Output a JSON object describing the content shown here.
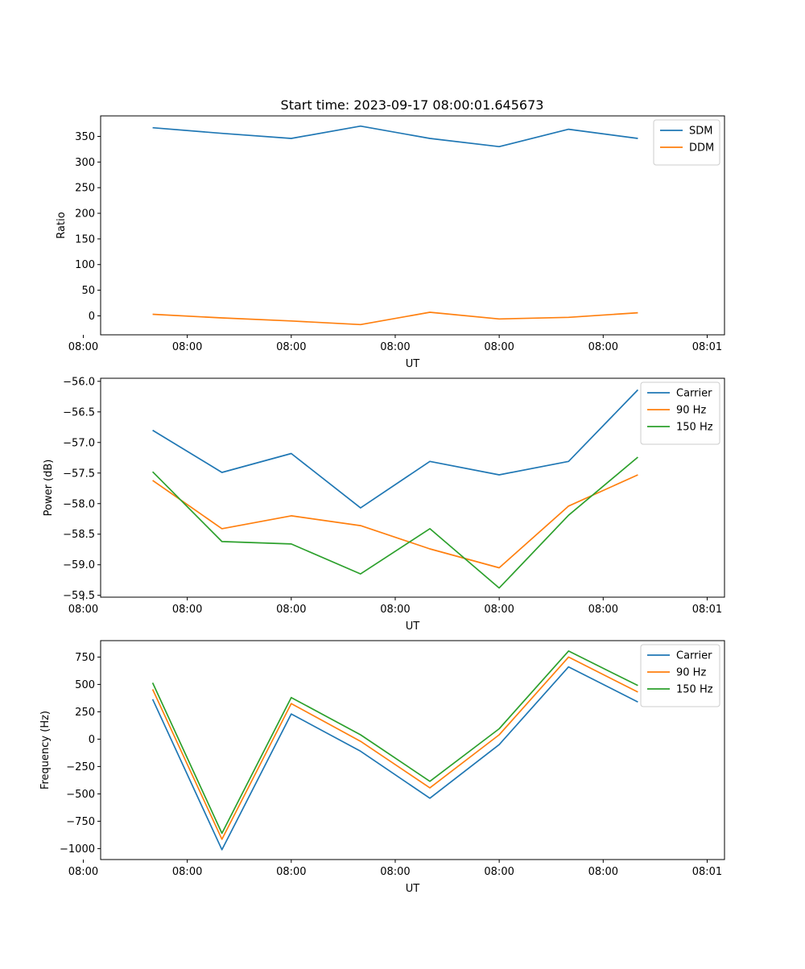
{
  "figure_title": "Start time: 2023-09-17 08:00:01.645673",
  "chart_data": [
    {
      "type": "line",
      "title": "Start time: 2023-09-17 08:00:01.645673",
      "xlabel": "UT",
      "ylabel": "Ratio",
      "x": [
        1,
        2,
        3,
        4,
        5,
        6,
        7,
        8
      ],
      "xlim": [
        0.25,
        9.25
      ],
      "x_ticks": [
        0,
        1.5,
        3,
        4.5,
        6,
        7.5,
        9
      ],
      "x_tick_labels": [
        "08:00",
        "08:00",
        "08:00",
        "08:00",
        "08:00",
        "08:00",
        "08:01"
      ],
      "ylim": [
        -37,
        390
      ],
      "y_ticks": [
        0,
        50,
        100,
        150,
        200,
        250,
        300,
        350
      ],
      "y_tick_labels": [
        "0",
        "50",
        "100",
        "150",
        "200",
        "250",
        "300",
        "350"
      ],
      "legend_position": "top-right",
      "series": [
        {
          "name": "SDM",
          "color": "#1f77b4",
          "values": [
            367,
            356,
            346,
            370,
            346,
            330,
            364,
            346
          ]
        },
        {
          "name": "DDM",
          "color": "#ff7f0e",
          "values": [
            3,
            -4,
            -10,
            -17,
            7,
            -6,
            -3,
            6
          ]
        }
      ]
    },
    {
      "type": "line",
      "title": "",
      "xlabel": "UT",
      "ylabel": "Power (dB)",
      "x": [
        1,
        2,
        3,
        4,
        5,
        6,
        7,
        8
      ],
      "xlim": [
        0.25,
        9.25
      ],
      "x_ticks": [
        0,
        1.5,
        3,
        4.5,
        6,
        7.5,
        9
      ],
      "x_tick_labels": [
        "08:00",
        "08:00",
        "08:00",
        "08:00",
        "08:00",
        "08:00",
        "08:01"
      ],
      "ylim": [
        -59.53,
        -55.95
      ],
      "y_ticks": [
        -59.5,
        -59.0,
        -58.5,
        -58.0,
        -57.5,
        -57.0,
        -56.5,
        -56.0
      ],
      "y_tick_labels": [
        "−59.5",
        "−59.0",
        "−58.5",
        "−58.0",
        "−57.5",
        "−57.0",
        "−56.5",
        "−56.0"
      ],
      "legend_position": "top-right",
      "series": [
        {
          "name": "Carrier",
          "color": "#1f77b4",
          "values": [
            -56.8,
            -57.49,
            -57.18,
            -58.07,
            -57.31,
            -57.53,
            -57.31,
            -56.14
          ]
        },
        {
          "name": "90 Hz",
          "color": "#ff7f0e",
          "values": [
            -57.62,
            -58.41,
            -58.2,
            -58.36,
            -58.74,
            -59.05,
            -58.04,
            -57.53
          ]
        },
        {
          "name": "150 Hz",
          "color": "#2ca02c",
          "values": [
            -57.48,
            -58.62,
            -58.66,
            -59.15,
            -58.41,
            -59.38,
            -58.19,
            -57.24
          ]
        }
      ]
    },
    {
      "type": "line",
      "title": "",
      "xlabel": "UT",
      "ylabel": "Frequency (Hz)",
      "x": [
        1,
        2,
        3,
        4,
        5,
        6,
        7,
        8
      ],
      "xlim": [
        0.25,
        9.25
      ],
      "x_ticks": [
        0,
        1.5,
        3,
        4.5,
        6,
        7.5,
        9
      ],
      "x_tick_labels": [
        "08:00",
        "08:00",
        "08:00",
        "08:00",
        "08:00",
        "08:00",
        "08:01"
      ],
      "ylim": [
        -1100,
        900
      ],
      "y_ticks": [
        -1000,
        -750,
        -500,
        -250,
        0,
        250,
        500,
        750
      ],
      "y_tick_labels": [
        "−1000",
        "−750",
        "−500",
        "−250",
        "0",
        "250",
        "500",
        "750"
      ],
      "legend_position": "top-right",
      "series": [
        {
          "name": "Carrier",
          "color": "#1f77b4",
          "values": [
            365,
            -1010,
            230,
            -110,
            -540,
            -50,
            660,
            340
          ]
        },
        {
          "name": "90 Hz",
          "color": "#ff7f0e",
          "values": [
            455,
            -915,
            325,
            -20,
            -445,
            40,
            750,
            430
          ]
        },
        {
          "name": "150 Hz",
          "color": "#2ca02c",
          "values": [
            515,
            -860,
            380,
            40,
            -385,
            95,
            805,
            490
          ]
        }
      ]
    }
  ]
}
